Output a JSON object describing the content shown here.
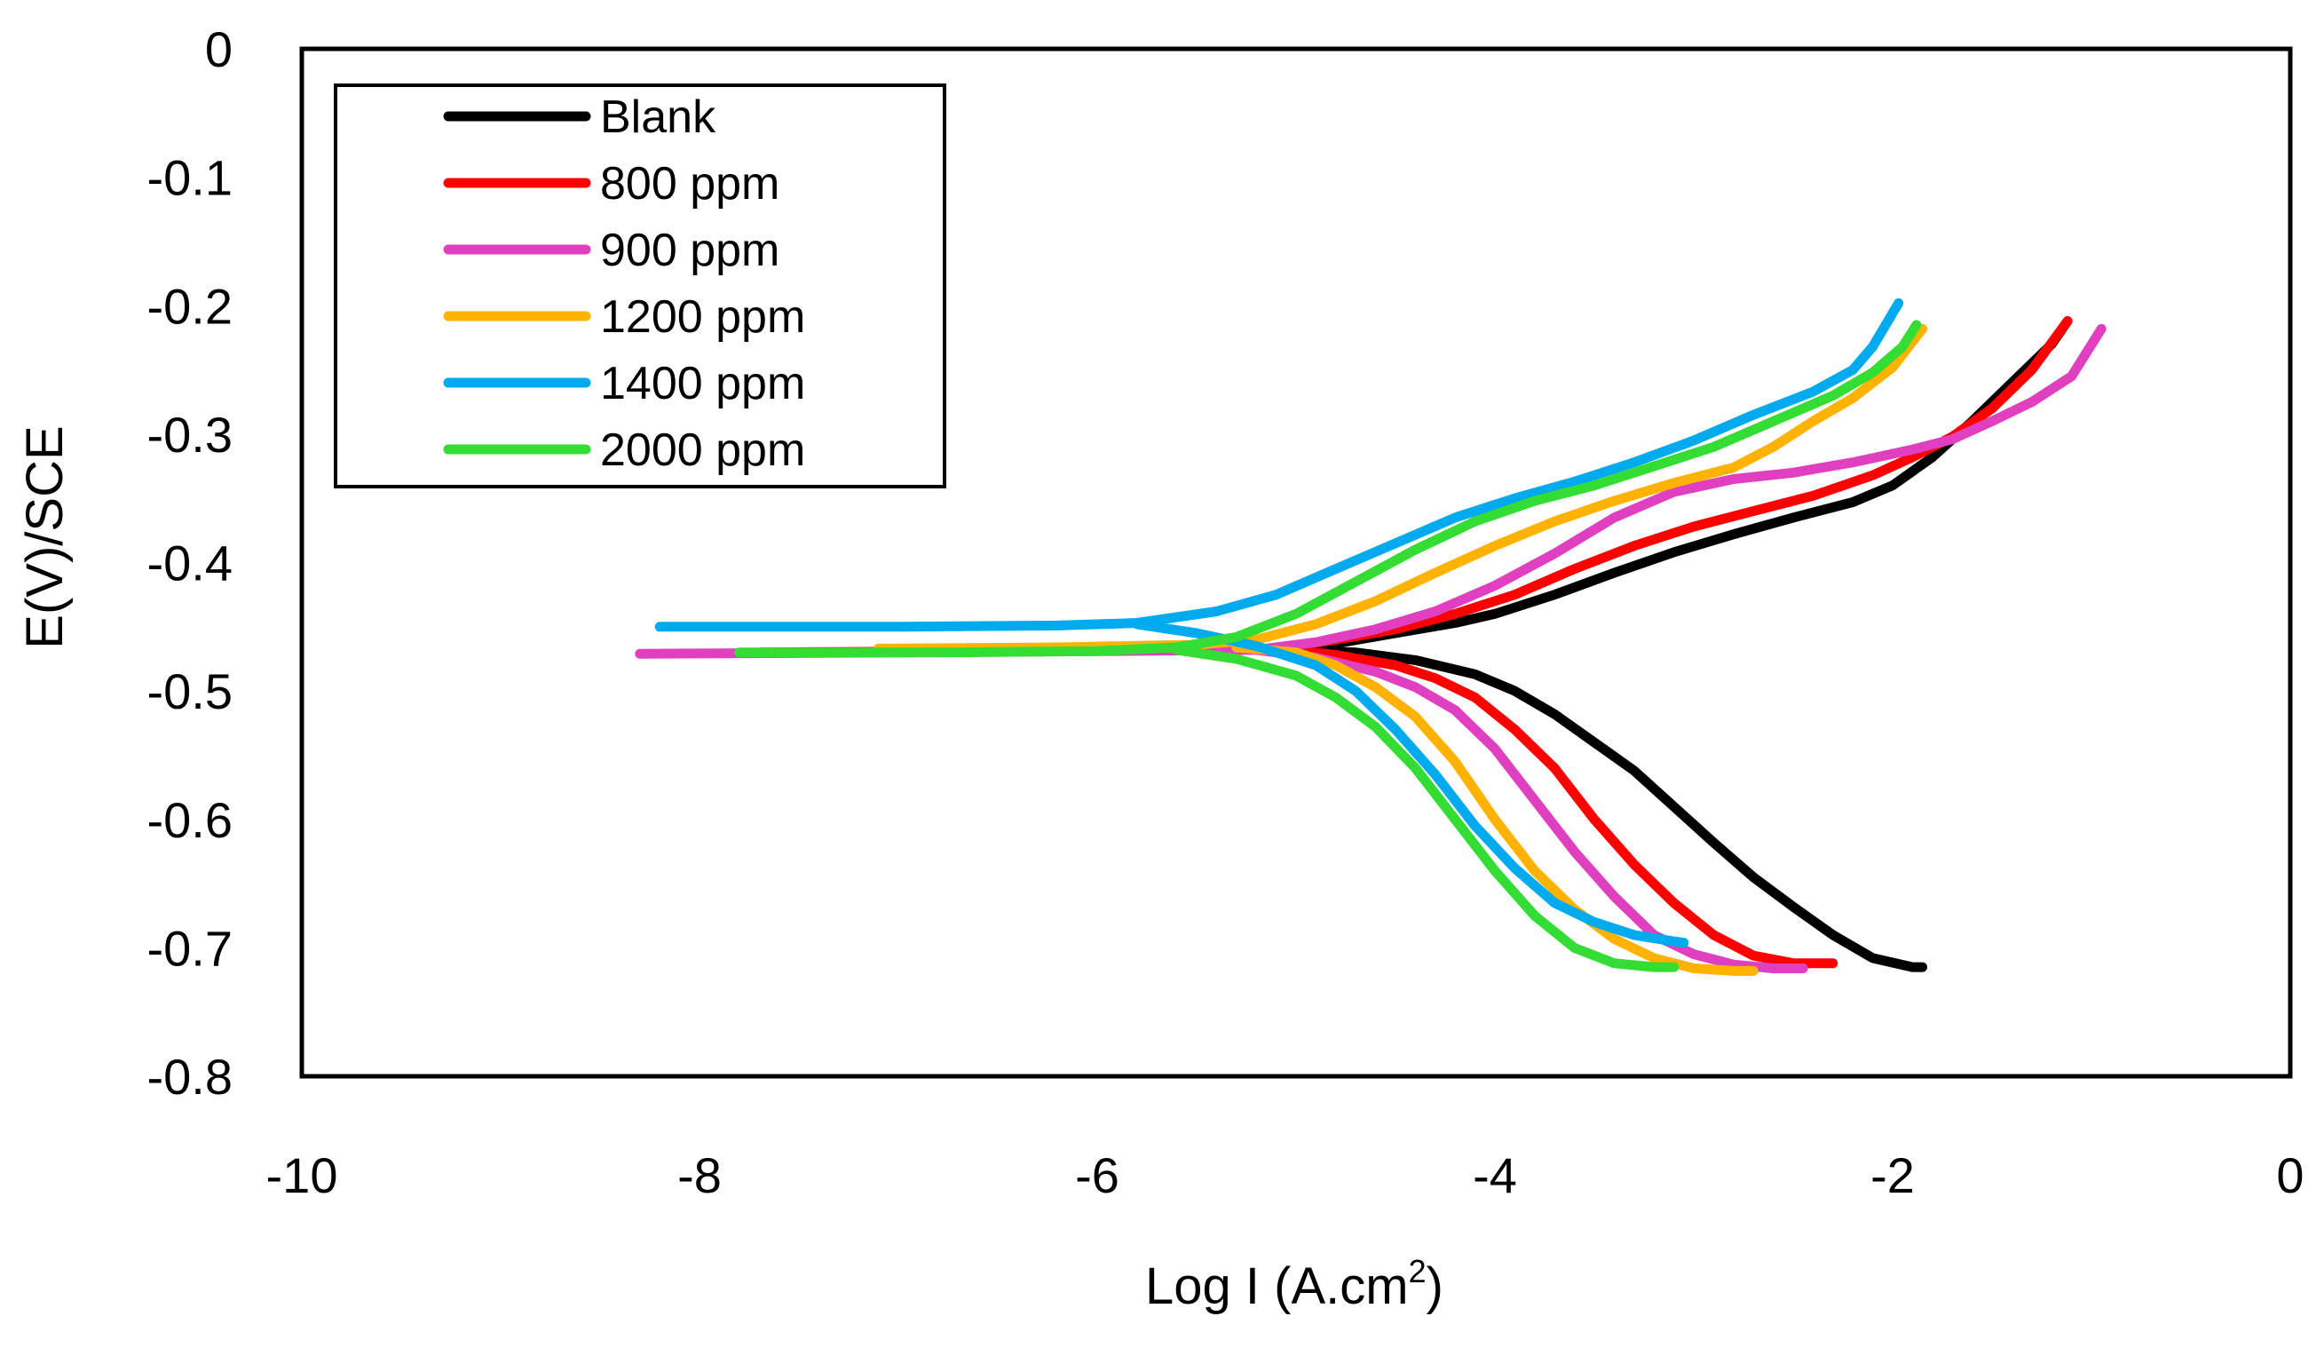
{
  "chart_data": {
    "type": "line",
    "title": "",
    "xlabel": "Log I (A.cm",
    "xlabel_sup": "2",
    "xlabel_close": ")",
    "ylabel": "E(V)/SCE",
    "xlim": [
      -10,
      0
    ],
    "ylim": [
      -0.8,
      0
    ],
    "xticks": [
      -10,
      -8,
      -6,
      -4,
      -2,
      0
    ],
    "xtick_labels": [
      "-10",
      "-8",
      "-6",
      "-4",
      "-2",
      "0"
    ],
    "yticks": [
      0,
      -0.1,
      -0.2,
      -0.3,
      -0.4,
      -0.5,
      -0.6,
      -0.7,
      -0.8
    ],
    "ytick_labels": [
      "0",
      "-0.1",
      "-0.2",
      "-0.3",
      "-0.4",
      "-0.5",
      "-0.6",
      "-0.7",
      "-0.8"
    ],
    "grid": false,
    "legend_position": "top-left",
    "series": [
      {
        "name": "Blank",
        "color": "#000000",
        "anodic": [
          [
            -5.1,
            -0.468
          ],
          [
            -4.8,
            -0.463
          ],
          [
            -4.5,
            -0.455
          ],
          [
            -4.2,
            -0.447
          ],
          [
            -4.0,
            -0.44
          ],
          [
            -3.7,
            -0.425
          ],
          [
            -3.4,
            -0.408
          ],
          [
            -3.1,
            -0.392
          ],
          [
            -2.8,
            -0.378
          ],
          [
            -2.5,
            -0.365
          ],
          [
            -2.2,
            -0.353
          ],
          [
            -2.0,
            -0.34
          ],
          [
            -1.8,
            -0.318
          ],
          [
            -1.6,
            -0.29
          ],
          [
            -1.4,
            -0.26
          ],
          [
            -1.2,
            -0.23
          ],
          [
            -1.12,
            -0.212
          ]
        ],
        "cathodic": [
          [
            -5.1,
            -0.468
          ],
          [
            -4.7,
            -0.47
          ],
          [
            -4.4,
            -0.476
          ],
          [
            -4.1,
            -0.487
          ],
          [
            -3.9,
            -0.5
          ],
          [
            -3.7,
            -0.518
          ],
          [
            -3.5,
            -0.54
          ],
          [
            -3.3,
            -0.562
          ],
          [
            -3.1,
            -0.59
          ],
          [
            -2.9,
            -0.618
          ],
          [
            -2.7,
            -0.645
          ],
          [
            -2.5,
            -0.668
          ],
          [
            -2.3,
            -0.69
          ],
          [
            -2.1,
            -0.708
          ],
          [
            -1.9,
            -0.715
          ],
          [
            -1.85,
            -0.715
          ]
        ]
      },
      {
        "name": "800 ppm",
        "color": "#ff0000",
        "anodic": [
          [
            -7.7,
            -0.47
          ],
          [
            -6.5,
            -0.469
          ],
          [
            -5.5,
            -0.468
          ],
          [
            -5.1,
            -0.467
          ],
          [
            -4.8,
            -0.46
          ],
          [
            -4.5,
            -0.452
          ],
          [
            -4.2,
            -0.44
          ],
          [
            -3.9,
            -0.425
          ],
          [
            -3.6,
            -0.405
          ],
          [
            -3.3,
            -0.387
          ],
          [
            -3.0,
            -0.372
          ],
          [
            -2.7,
            -0.36
          ],
          [
            -2.4,
            -0.348
          ],
          [
            -2.1,
            -0.332
          ],
          [
            -1.9,
            -0.318
          ],
          [
            -1.7,
            -0.302
          ],
          [
            -1.5,
            -0.28
          ],
          [
            -1.3,
            -0.25
          ],
          [
            -1.12,
            -0.212
          ]
        ],
        "cathodic": [
          [
            -5.1,
            -0.467
          ],
          [
            -4.8,
            -0.472
          ],
          [
            -4.5,
            -0.48
          ],
          [
            -4.3,
            -0.49
          ],
          [
            -4.1,
            -0.505
          ],
          [
            -3.9,
            -0.53
          ],
          [
            -3.7,
            -0.56
          ],
          [
            -3.5,
            -0.6
          ],
          [
            -3.3,
            -0.635
          ],
          [
            -3.1,
            -0.665
          ],
          [
            -2.9,
            -0.69
          ],
          [
            -2.7,
            -0.706
          ],
          [
            -2.5,
            -0.712
          ],
          [
            -2.3,
            -0.712
          ]
        ]
      },
      {
        "name": "900 ppm",
        "color": "#e040c0",
        "anodic": [
          [
            -8.3,
            -0.471
          ],
          [
            -7.0,
            -0.47
          ],
          [
            -6.0,
            -0.469
          ],
          [
            -5.2,
            -0.468
          ],
          [
            -4.9,
            -0.462
          ],
          [
            -4.6,
            -0.452
          ],
          [
            -4.3,
            -0.438
          ],
          [
            -4.0,
            -0.418
          ],
          [
            -3.7,
            -0.393
          ],
          [
            -3.4,
            -0.365
          ],
          [
            -3.1,
            -0.345
          ],
          [
            -2.8,
            -0.335
          ],
          [
            -2.5,
            -0.33
          ],
          [
            -2.2,
            -0.322
          ],
          [
            -1.9,
            -0.312
          ],
          [
            -1.7,
            -0.304
          ],
          [
            -1.5,
            -0.29
          ],
          [
            -1.3,
            -0.275
          ],
          [
            -1.1,
            -0.255
          ],
          [
            -0.95,
            -0.218
          ]
        ],
        "cathodic": [
          [
            -5.2,
            -0.468
          ],
          [
            -4.9,
            -0.474
          ],
          [
            -4.6,
            -0.485
          ],
          [
            -4.4,
            -0.497
          ],
          [
            -4.2,
            -0.515
          ],
          [
            -4.0,
            -0.545
          ],
          [
            -3.8,
            -0.585
          ],
          [
            -3.6,
            -0.625
          ],
          [
            -3.4,
            -0.66
          ],
          [
            -3.2,
            -0.69
          ],
          [
            -3.0,
            -0.705
          ],
          [
            -2.8,
            -0.713
          ],
          [
            -2.6,
            -0.716
          ],
          [
            -2.45,
            -0.716
          ]
        ]
      },
      {
        "name": "1200 ppm",
        "color": "#ffb300",
        "anodic": [
          [
            -7.1,
            -0.467
          ],
          [
            -6.2,
            -0.466
          ],
          [
            -5.5,
            -0.464
          ],
          [
            -5.2,
            -0.46
          ],
          [
            -4.9,
            -0.448
          ],
          [
            -4.6,
            -0.43
          ],
          [
            -4.3,
            -0.408
          ],
          [
            -4.0,
            -0.387
          ],
          [
            -3.7,
            -0.368
          ],
          [
            -3.4,
            -0.352
          ],
          [
            -3.1,
            -0.338
          ],
          [
            -2.8,
            -0.326
          ],
          [
            -2.6,
            -0.31
          ],
          [
            -2.4,
            -0.29
          ],
          [
            -2.2,
            -0.272
          ],
          [
            -2.0,
            -0.248
          ],
          [
            -1.85,
            -0.218
          ]
        ],
        "cathodic": [
          [
            -5.3,
            -0.466
          ],
          [
            -5.0,
            -0.47
          ],
          [
            -4.8,
            -0.48
          ],
          [
            -4.6,
            -0.497
          ],
          [
            -4.4,
            -0.52
          ],
          [
            -4.2,
            -0.555
          ],
          [
            -4.0,
            -0.6
          ],
          [
            -3.8,
            -0.64
          ],
          [
            -3.6,
            -0.67
          ],
          [
            -3.4,
            -0.693
          ],
          [
            -3.2,
            -0.708
          ],
          [
            -3.0,
            -0.716
          ],
          [
            -2.8,
            -0.718
          ],
          [
            -2.7,
            -0.718
          ]
        ]
      },
      {
        "name": "1400 ppm",
        "color": "#00aaee",
        "anodic": [
          [
            -8.2,
            -0.45
          ],
          [
            -7.0,
            -0.45
          ],
          [
            -6.2,
            -0.449
          ],
          [
            -5.8,
            -0.447
          ],
          [
            -5.4,
            -0.438
          ],
          [
            -5.1,
            -0.425
          ],
          [
            -4.8,
            -0.405
          ],
          [
            -4.5,
            -0.385
          ],
          [
            -4.2,
            -0.365
          ],
          [
            -3.9,
            -0.35
          ],
          [
            -3.6,
            -0.337
          ],
          [
            -3.3,
            -0.322
          ],
          [
            -3.0,
            -0.305
          ],
          [
            -2.7,
            -0.285
          ],
          [
            -2.4,
            -0.267
          ],
          [
            -2.2,
            -0.25
          ],
          [
            -2.1,
            -0.232
          ],
          [
            -1.97,
            -0.198
          ]
        ],
        "cathodic": [
          [
            -5.8,
            -0.448
          ],
          [
            -5.5,
            -0.455
          ],
          [
            -5.2,
            -0.465
          ],
          [
            -4.9,
            -0.48
          ],
          [
            -4.7,
            -0.5
          ],
          [
            -4.5,
            -0.53
          ],
          [
            -4.3,
            -0.565
          ],
          [
            -4.1,
            -0.605
          ],
          [
            -3.9,
            -0.638
          ],
          [
            -3.7,
            -0.665
          ],
          [
            -3.5,
            -0.68
          ],
          [
            -3.3,
            -0.69
          ],
          [
            -3.1,
            -0.695
          ],
          [
            -3.05,
            -0.696
          ]
        ]
      },
      {
        "name": "2000 ppm",
        "color": "#33dd33",
        "anodic": [
          [
            -7.8,
            -0.47
          ],
          [
            -6.8,
            -0.47
          ],
          [
            -6.0,
            -0.469
          ],
          [
            -5.6,
            -0.466
          ],
          [
            -5.3,
            -0.458
          ],
          [
            -5.0,
            -0.44
          ],
          [
            -4.7,
            -0.415
          ],
          [
            -4.4,
            -0.39
          ],
          [
            -4.1,
            -0.368
          ],
          [
            -3.8,
            -0.352
          ],
          [
            -3.5,
            -0.34
          ],
          [
            -3.2,
            -0.325
          ],
          [
            -2.9,
            -0.31
          ],
          [
            -2.6,
            -0.29
          ],
          [
            -2.3,
            -0.27
          ],
          [
            -2.1,
            -0.252
          ],
          [
            -1.95,
            -0.232
          ],
          [
            -1.88,
            -0.215
          ]
        ],
        "cathodic": [
          [
            -5.6,
            -0.468
          ],
          [
            -5.3,
            -0.475
          ],
          [
            -5.0,
            -0.488
          ],
          [
            -4.8,
            -0.505
          ],
          [
            -4.6,
            -0.528
          ],
          [
            -4.4,
            -0.56
          ],
          [
            -4.2,
            -0.6
          ],
          [
            -4.0,
            -0.64
          ],
          [
            -3.8,
            -0.675
          ],
          [
            -3.6,
            -0.7
          ],
          [
            -3.4,
            -0.712
          ],
          [
            -3.2,
            -0.715
          ],
          [
            -3.1,
            -0.715
          ]
        ]
      }
    ]
  }
}
